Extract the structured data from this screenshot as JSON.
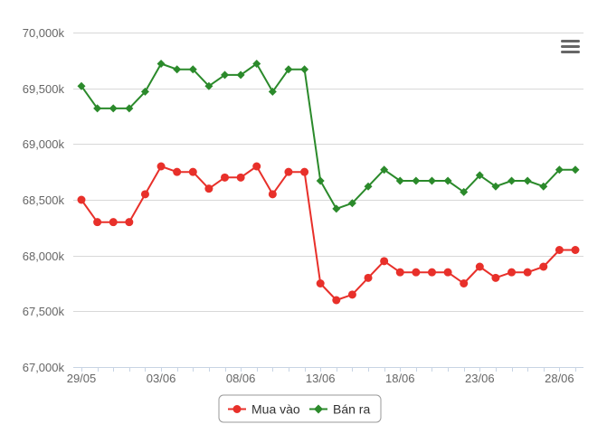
{
  "chart_data": {
    "type": "line",
    "x_tick_labels": [
      "29/05",
      "03/06",
      "08/06",
      "13/06",
      "18/06",
      "23/06",
      "28/06"
    ],
    "y_tick_labels": [
      "67,000k",
      "67,500k",
      "68,000k",
      "68,500k",
      "69,000k",
      "69,500k",
      "70,000k"
    ],
    "ylim": [
      67000,
      70000
    ],
    "y_step": 500,
    "grid": true,
    "legend_position": "bottom-center",
    "series": [
      {
        "name": "Mua vào",
        "color": "#e8302a",
        "marker": "circle",
        "values": [
          68500,
          68300,
          68300,
          68300,
          68550,
          68800,
          68750,
          68750,
          68600,
          68700,
          68700,
          68800,
          68550,
          68750,
          68750,
          67750,
          67600,
          67650,
          67800,
          67950,
          67850,
          67850,
          67850,
          67850,
          67750,
          67900,
          67800,
          67850,
          67850,
          67900,
          68050,
          68050
        ]
      },
      {
        "name": "Bán ra",
        "color": "#2b8a2b",
        "marker": "diamond",
        "values": [
          69520,
          69320,
          69320,
          69320,
          69470,
          69720,
          69670,
          69670,
          69520,
          69620,
          69620,
          69720,
          69470,
          69670,
          69670,
          68670,
          68420,
          68470,
          68620,
          68770,
          68670,
          68670,
          68670,
          68670,
          68570,
          68720,
          68620,
          68670,
          68670,
          68620,
          68770,
          68770
        ]
      }
    ]
  },
  "menu": {
    "icon": "hamburger-menu-icon"
  },
  "colors": {
    "grid": "#d8d8d8",
    "axis_text": "#666666",
    "x_axis_line": "#c8d4e4"
  }
}
